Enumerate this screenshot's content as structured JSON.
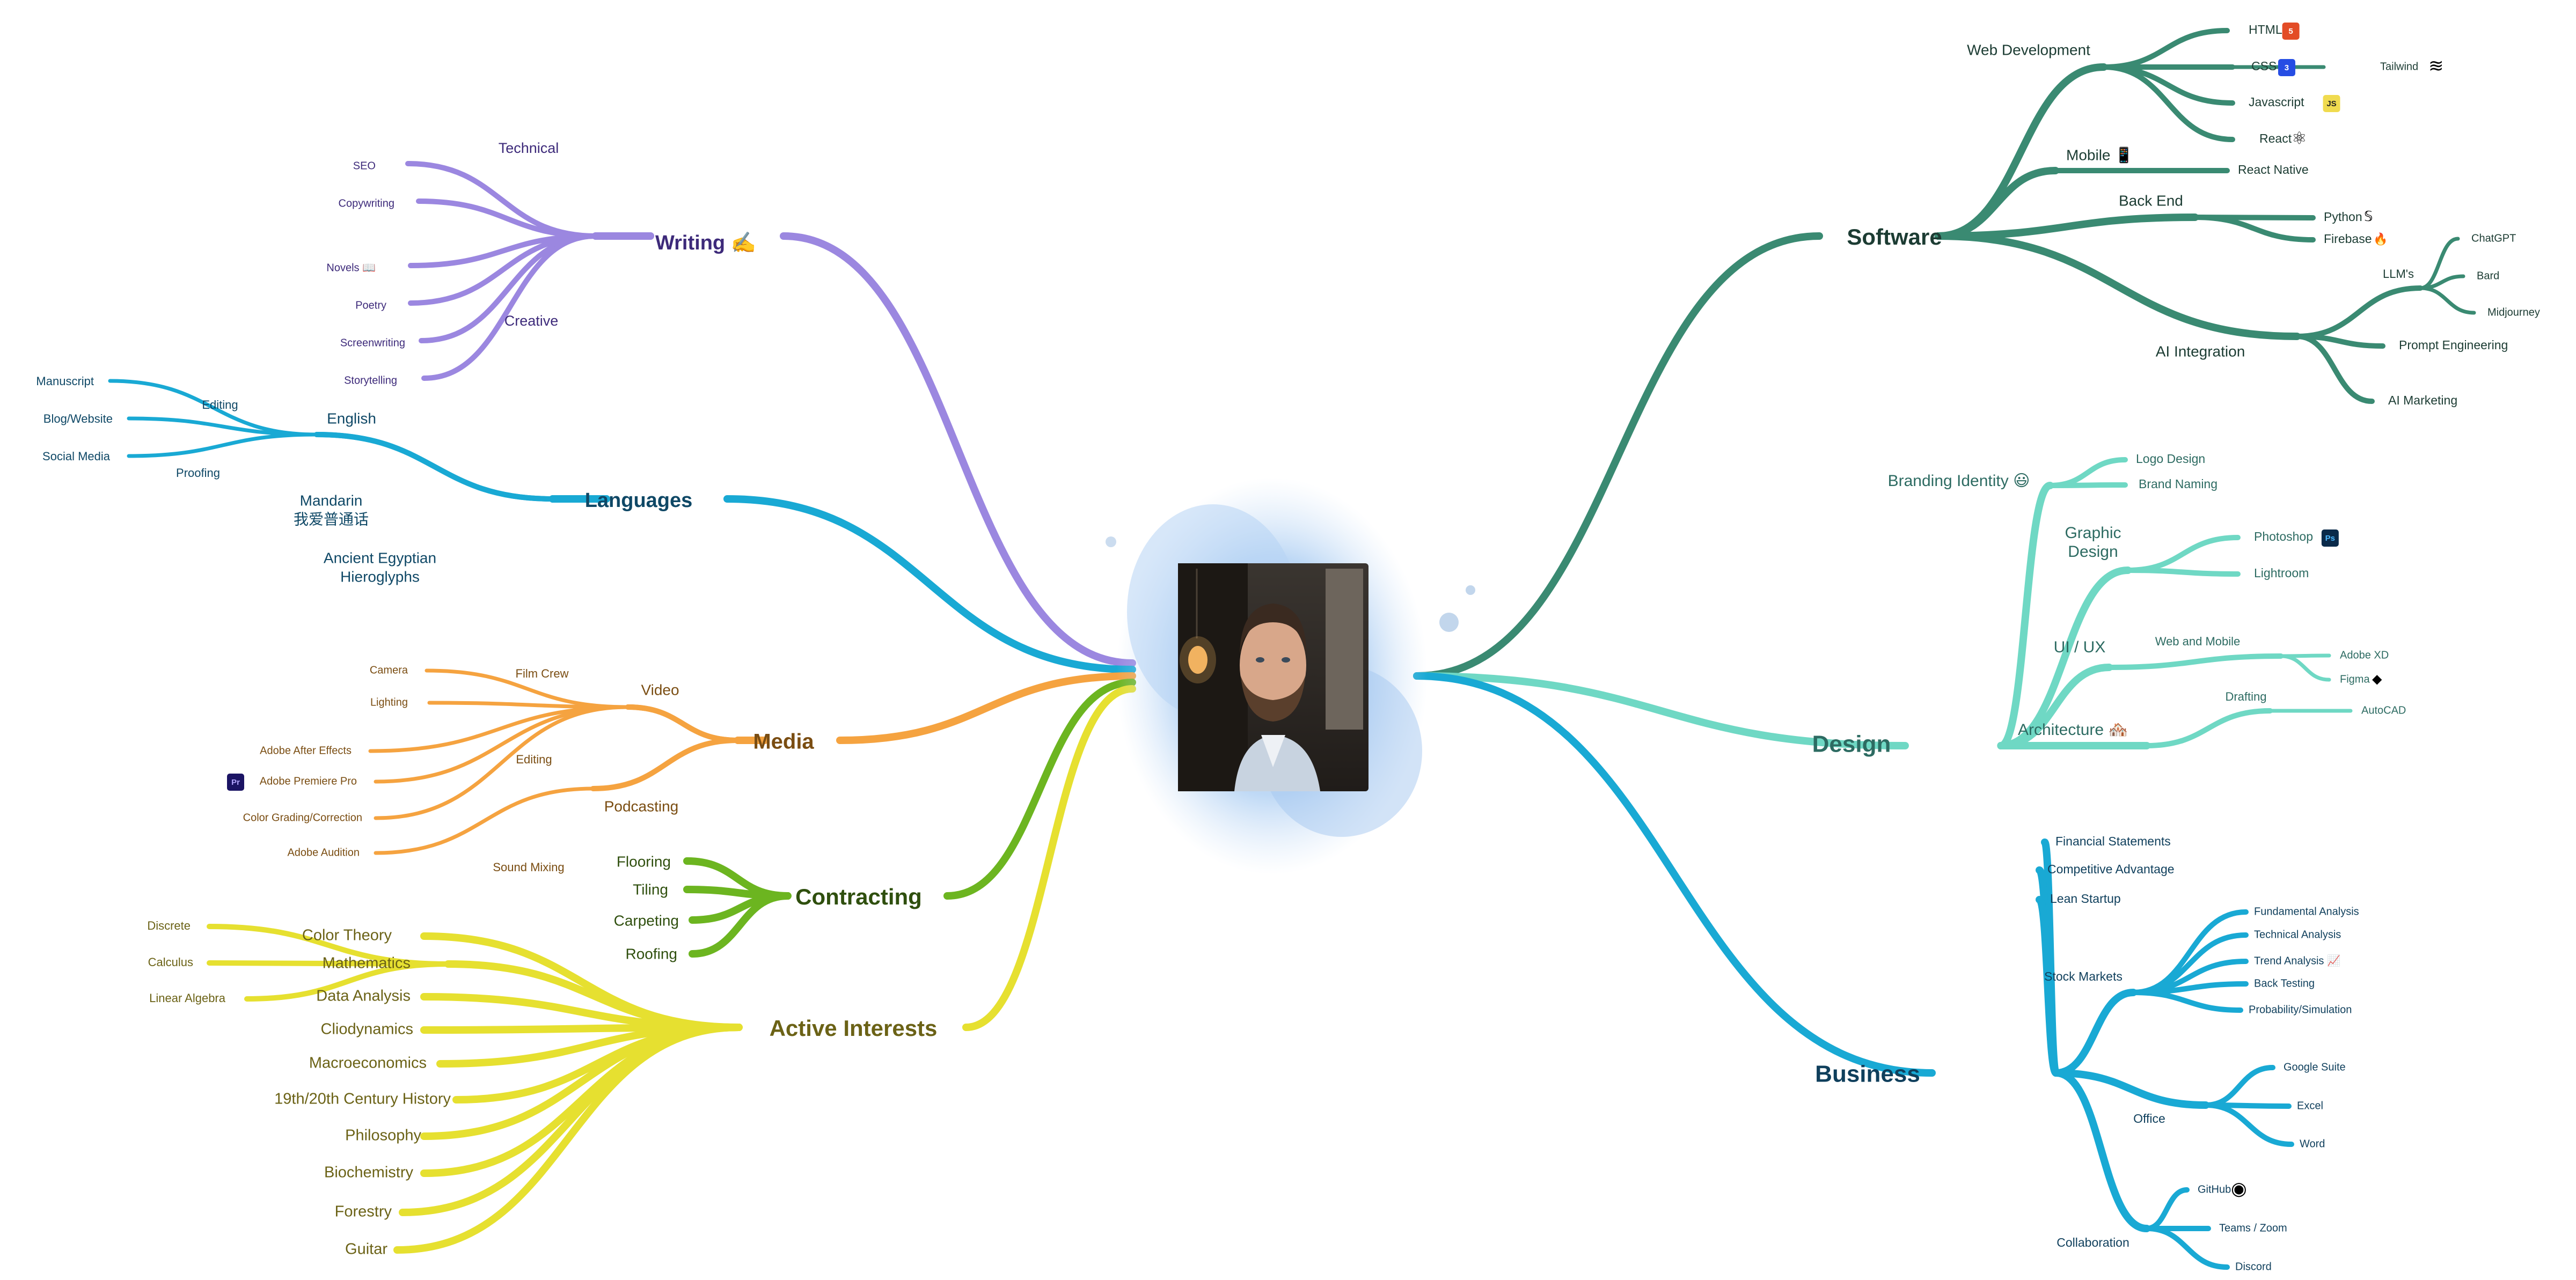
{
  "mindmap": {
    "center": {
      "label": "",
      "photo": "profile-photo"
    },
    "branches": [
      {
        "id": "writing",
        "label": "Writing ✍️",
        "color": "#9b87e0",
        "text_color": "#3d2a7a",
        "children": [
          {
            "label": "Technical",
            "children": [
              {
                "label": "SEO"
              },
              {
                "label": "Copywriting"
              }
            ]
          },
          {
            "label": "Creative",
            "children": [
              {
                "label": "Novels 📖"
              },
              {
                "label": "Poetry"
              },
              {
                "label": "Screenwriting"
              },
              {
                "label": "Storytelling"
              }
            ]
          }
        ]
      },
      {
        "id": "languages",
        "label": "Languages",
        "color": "#19a9d4",
        "text_color": "#0f4866",
        "children": [
          {
            "label": "English",
            "children": [
              {
                "label": "Editing",
                "children": [
                  {
                    "label": "Manuscript"
                  },
                  {
                    "label": "Blog/Website"
                  },
                  {
                    "label": "Social Media"
                  }
                ]
              },
              {
                "label": "Proofing"
              }
            ]
          },
          {
            "label": "Mandarin",
            "sub": "我爱普通话"
          },
          {
            "label": "Ancient Egyptian",
            "sub": "Hieroglyphs"
          }
        ]
      },
      {
        "id": "media",
        "label": "Media",
        "color": "#f5a340",
        "text_color": "#7a4d12",
        "children": [
          {
            "label": "Video",
            "children": [
              {
                "label": "Film Crew",
                "children": [
                  {
                    "label": "Camera"
                  },
                  {
                    "label": "Lighting"
                  }
                ]
              },
              {
                "label": "Editing",
                "children": [
                  {
                    "label": "Adobe After Effects"
                  },
                  {
                    "label": "Adobe Premiere Pro",
                    "icon": "Pr"
                  },
                  {
                    "label": "Color Grading/Correction"
                  }
                ]
              }
            ]
          },
          {
            "label": "Podcasting",
            "children": [
              {
                "label": "Sound Mixing",
                "children": [
                  {
                    "label": "Adobe Audition"
                  }
                ]
              }
            ]
          }
        ]
      },
      {
        "id": "contracting",
        "label": "Contracting",
        "color": "#6cb520",
        "text_color": "#2f4f0e",
        "children": [
          {
            "label": "Flooring"
          },
          {
            "label": "Tiling"
          },
          {
            "label": "Carpeting"
          },
          {
            "label": "Roofing"
          }
        ]
      },
      {
        "id": "active",
        "label": "Active Interests",
        "color": "#e6e030",
        "text_color": "#6b6216",
        "children": [
          {
            "label": "Color Theory"
          },
          {
            "label": "Mathematics",
            "children": [
              {
                "label": "Discrete"
              },
              {
                "label": "Calculus"
              },
              {
                "label": "Linear Algebra"
              }
            ]
          },
          {
            "label": "Data Analysis"
          },
          {
            "label": "Cliodynamics"
          },
          {
            "label": "Macroeconomics"
          },
          {
            "label": "19th/20th Century History"
          },
          {
            "label": "Philosophy"
          },
          {
            "label": "Biochemistry"
          },
          {
            "label": "Forestry"
          },
          {
            "label": "Guitar"
          }
        ]
      },
      {
        "id": "software",
        "label": "Software",
        "color": "#3a8a72",
        "text_color": "#1c3c33",
        "children": [
          {
            "label": "Web Development",
            "children": [
              {
                "label": "HTML",
                "icon": "5"
              },
              {
                "label": "CSS",
                "icon": "3",
                "children": [
                  {
                    "label": "Tailwind"
                  }
                ]
              },
              {
                "label": "Javascript",
                "icon": "JS"
              },
              {
                "label": "React"
              }
            ]
          },
          {
            "label": "Mobile 📱",
            "children": [
              {
                "label": "React Native"
              }
            ]
          },
          {
            "label": "Back End",
            "children": [
              {
                "label": "Python"
              },
              {
                "label": "Firebase"
              }
            ]
          },
          {
            "label": "AI Integration",
            "children": [
              {
                "label": "LLM's",
                "children": [
                  {
                    "label": "ChatGPT"
                  },
                  {
                    "label": "Bard"
                  },
                  {
                    "label": "Midjourney"
                  }
                ]
              },
              {
                "label": "Prompt Engineering"
              },
              {
                "label": "AI Marketing"
              }
            ]
          }
        ]
      },
      {
        "id": "design",
        "label": "Design",
        "color": "#6fd8c4",
        "text_color": "#2d6b62",
        "children": [
          {
            "label": "Branding Identity 😃",
            "children": [
              {
                "label": "Logo Design"
              },
              {
                "label": "Brand Naming"
              }
            ]
          },
          {
            "label": "Graphic",
            "sub": "Design",
            "children": [
              {
                "label": "Photoshop",
                "icon": "Ps"
              },
              {
                "label": "Lightroom"
              }
            ]
          },
          {
            "label": "UI / UX",
            "children": [
              {
                "label": "Web and Mobile",
                "children": [
                  {
                    "label": "Adobe XD"
                  },
                  {
                    "label": "Figma"
                  }
                ]
              }
            ]
          },
          {
            "label": "Architecture 🏘️",
            "children": [
              {
                "label": "Drafting",
                "children": [
                  {
                    "label": "AutoCAD"
                  }
                ]
              }
            ]
          }
        ]
      },
      {
        "id": "business",
        "label": "Business",
        "color": "#19a9d4",
        "text_color": "#0f3f5c",
        "children": [
          {
            "label": "Financial Statements"
          },
          {
            "label": "Competitive Advantage"
          },
          {
            "label": "Lean Startup"
          },
          {
            "label": "Stock Markets",
            "children": [
              {
                "label": "Fundamental Analysis"
              },
              {
                "label": "Technical Analysis"
              },
              {
                "label": "Trend Analysis 📈"
              },
              {
                "label": "Back Testing"
              },
              {
                "label": "Probability/Simulation"
              }
            ]
          },
          {
            "label": "Office",
            "children": [
              {
                "label": "Google Suite"
              },
              {
                "label": "Excel"
              },
              {
                "label": "Word"
              }
            ]
          },
          {
            "label": "Collaboration",
            "children": [
              {
                "label": "GitHub"
              },
              {
                "label": "Teams / Zoom"
              },
              {
                "label": "Discord"
              }
            ]
          }
        ]
      }
    ]
  }
}
